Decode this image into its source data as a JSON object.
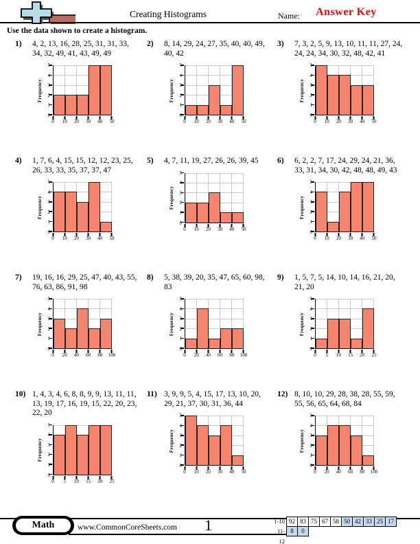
{
  "header": {
    "title": "Creating Histograms",
    "name_label": "Name:",
    "answer_key": "Answer Key",
    "instruction": "Use the data shown to create a histogram."
  },
  "problems": [
    {
      "num": "1)",
      "data_values": "4, 2, 13, 16, 28, 25, 31, 31, 33, 34, 32, 49, 41, 43, 49, 49",
      "chart": {
        "type": "bar",
        "ylabel": "Frequency",
        "ymax": 5,
        "yticks": [
          0,
          1,
          2,
          3,
          4,
          5
        ],
        "xticks": [
          "0",
          "10",
          "20",
          "30",
          "40",
          "50"
        ],
        "values": [
          2,
          2,
          2,
          5,
          5
        ]
      }
    },
    {
      "num": "2)",
      "data_values": "8, 14, 29, 24, 27, 35, 40, 40, 49, 40, 42",
      "chart": {
        "type": "bar",
        "ylabel": "Frequency",
        "ymax": 5,
        "yticks": [
          0,
          1,
          2,
          3,
          4,
          5
        ],
        "xticks": [
          "0",
          "10",
          "20",
          "30",
          "40",
          "50"
        ],
        "values": [
          1,
          1,
          3,
          1,
          5
        ]
      }
    },
    {
      "num": "3)",
      "data_values": "7, 3, 2, 5, 9, 13, 10, 11, 11, 27, 24, 24, 24, 34, 30, 32, 48, 42, 41",
      "chart": {
        "type": "bar",
        "ylabel": "Frequency",
        "ymax": 5,
        "yticks": [
          0,
          1,
          2,
          3,
          4,
          5
        ],
        "xticks": [
          "0",
          "10",
          "20",
          "30",
          "40",
          "50"
        ],
        "values": [
          5,
          4,
          4,
          3,
          3
        ]
      }
    },
    {
      "num": "4)",
      "data_values": "1, 7, 6, 4, 15, 15, 12, 12, 23, 25, 26, 33, 33, 35, 37, 37, 47",
      "chart": {
        "type": "bar",
        "ylabel": "Frequency",
        "ymax": 5,
        "yticks": [
          0,
          1,
          2,
          3,
          4,
          5
        ],
        "xticks": [
          "0",
          "10",
          "20",
          "30",
          "40",
          "50"
        ],
        "values": [
          4,
          4,
          3,
          5,
          1
        ]
      }
    },
    {
      "num": "5)",
      "data_values": "4, 7, 11, 19, 27, 26, 26, 39, 45",
      "chart": {
        "type": "bar",
        "ylabel": "Frequency",
        "ymax": 5,
        "yticks": [
          0,
          1,
          2,
          3,
          4,
          5
        ],
        "xticks": [
          "0",
          "10",
          "20",
          "30",
          "40",
          "50"
        ],
        "values": [
          2,
          2,
          3,
          1,
          1
        ]
      }
    },
    {
      "num": "6)",
      "data_values": "6, 2, 2, 7, 17, 24, 29, 24, 21, 36, 33, 31, 34, 30, 42, 48, 48, 49, 43",
      "chart": {
        "type": "bar",
        "ylabel": "Frequency",
        "ymax": 5,
        "yticks": [
          0,
          1,
          2,
          3,
          4,
          5
        ],
        "xticks": [
          "0",
          "10",
          "20",
          "30",
          "40",
          "50"
        ],
        "values": [
          4,
          1,
          4,
          5,
          5
        ]
      }
    },
    {
      "num": "7)",
      "data_values": "19, 16, 16, 29, 25, 47, 40, 43, 55, 76, 63, 86, 91, 98",
      "chart": {
        "type": "bar",
        "ylabel": "Frequency",
        "ymax": 5,
        "yticks": [
          0,
          1,
          2,
          3,
          4,
          5
        ],
        "xticks": [
          "0",
          "20",
          "40",
          "60",
          "80",
          "100"
        ],
        "values": [
          3,
          2,
          4,
          2,
          3
        ]
      }
    },
    {
      "num": "8)",
      "data_values": "5, 38, 39, 20, 35, 47, 65, 60, 98, 83",
      "chart": {
        "type": "bar",
        "ylabel": "Frequency",
        "ymax": 5,
        "yticks": [
          0,
          1,
          2,
          3,
          4,
          5
        ],
        "xticks": [
          "0",
          "20",
          "40",
          "60",
          "80",
          "100"
        ],
        "values": [
          1,
          4,
          1,
          2,
          2
        ]
      }
    },
    {
      "num": "9)",
      "data_values": "1, 5, 7, 5, 14, 10, 14, 16, 21, 20, 21, 20",
      "chart": {
        "type": "bar",
        "ylabel": "Frequency",
        "ymax": 5,
        "yticks": [
          0,
          1,
          2,
          3,
          4,
          5
        ],
        "xticks": [
          "0",
          "5",
          "10",
          "15",
          "20",
          "25"
        ],
        "values": [
          1,
          3,
          3,
          1,
          4
        ]
      }
    },
    {
      "num": "10)",
      "data_values": "1, 4, 3, 4, 6, 8, 8, 9, 9, 13, 11, 11, 13, 19, 17, 16, 19, 15, 22, 20, 23, 22, 20",
      "chart": {
        "type": "bar",
        "ylabel": "Frequency",
        "ymax": 5,
        "yticks": [
          0,
          1,
          2,
          3,
          4,
          5
        ],
        "xticks": [
          "0",
          "5",
          "10",
          "15",
          "20",
          "25"
        ],
        "values": [
          4,
          5,
          4,
          5,
          5
        ]
      }
    },
    {
      "num": "11)",
      "data_values": "3, 9, 9, 5, 4, 15, 17, 13, 10, 20, 29, 21, 37, 30, 31, 36, 44",
      "chart": {
        "type": "bar",
        "ylabel": "Frequency",
        "ymax": 5,
        "yticks": [
          0,
          1,
          2,
          3,
          4,
          5
        ],
        "xticks": [
          "0",
          "10",
          "20",
          "30",
          "40",
          "50"
        ],
        "values": [
          5,
          4,
          3,
          4,
          1
        ]
      }
    },
    {
      "num": "12)",
      "data_values": "8, 10, 10, 29, 28, 38, 28, 55, 59, 55, 56, 65, 64, 68, 84",
      "chart": {
        "type": "bar",
        "ylabel": "Frequency",
        "ymax": 5,
        "yticks": [
          0,
          1,
          2,
          3,
          4,
          5
        ],
        "xticks": [
          "0",
          "20",
          "40",
          "60",
          "80",
          "100"
        ],
        "values": [
          3,
          4,
          4,
          3,
          1
        ]
      }
    }
  ],
  "footer": {
    "subject": "Math",
    "website": "www.CommonCoreSheets.com",
    "page": "1",
    "score_table": {
      "rows": [
        {
          "label": "1-10",
          "values": [
            "92",
            "83",
            "75",
            "67",
            "58",
            "50",
            "42",
            "33",
            "25",
            "17"
          ],
          "highlight_from": 5
        },
        {
          "label": "11-12",
          "values": [
            "8",
            "0"
          ],
          "highlight_from": 0
        }
      ]
    }
  },
  "colors": {
    "bar": "#f5856f",
    "bar_border": "#242424",
    "gridline": "#c8c8c8",
    "score_highlight": "#c5d9f1",
    "answer_key": "#ff0000",
    "logo_blue": "#b9dce8",
    "logo_red": "#bf6a5f"
  }
}
